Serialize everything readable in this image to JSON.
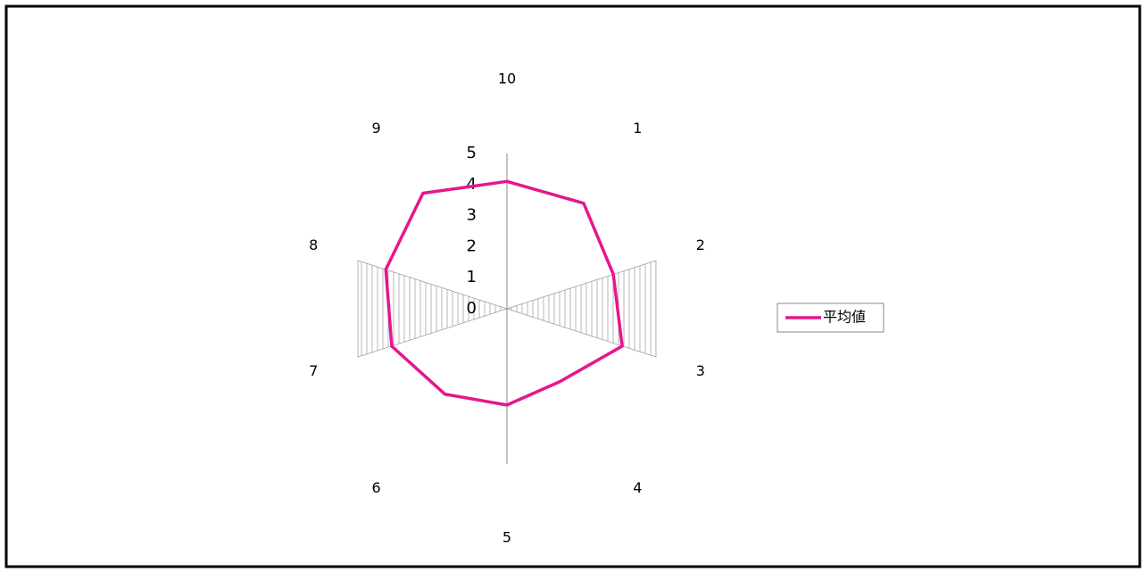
{
  "chart_data": {
    "type": "radar",
    "categories": [
      "10",
      "1",
      "2",
      "3",
      "4",
      "5",
      "6",
      "7",
      "8",
      "9"
    ],
    "series": [
      {
        "name": "平均値",
        "color": "#e6168c",
        "values": [
          4.1,
          4.2,
          3.6,
          3.9,
          2.9,
          3.1,
          3.4,
          3.9,
          4.1,
          4.6
        ]
      }
    ],
    "ylim": [
      0,
      5
    ],
    "yticks": [
      0,
      1,
      2,
      3,
      4,
      5
    ],
    "legend": "right"
  }
}
